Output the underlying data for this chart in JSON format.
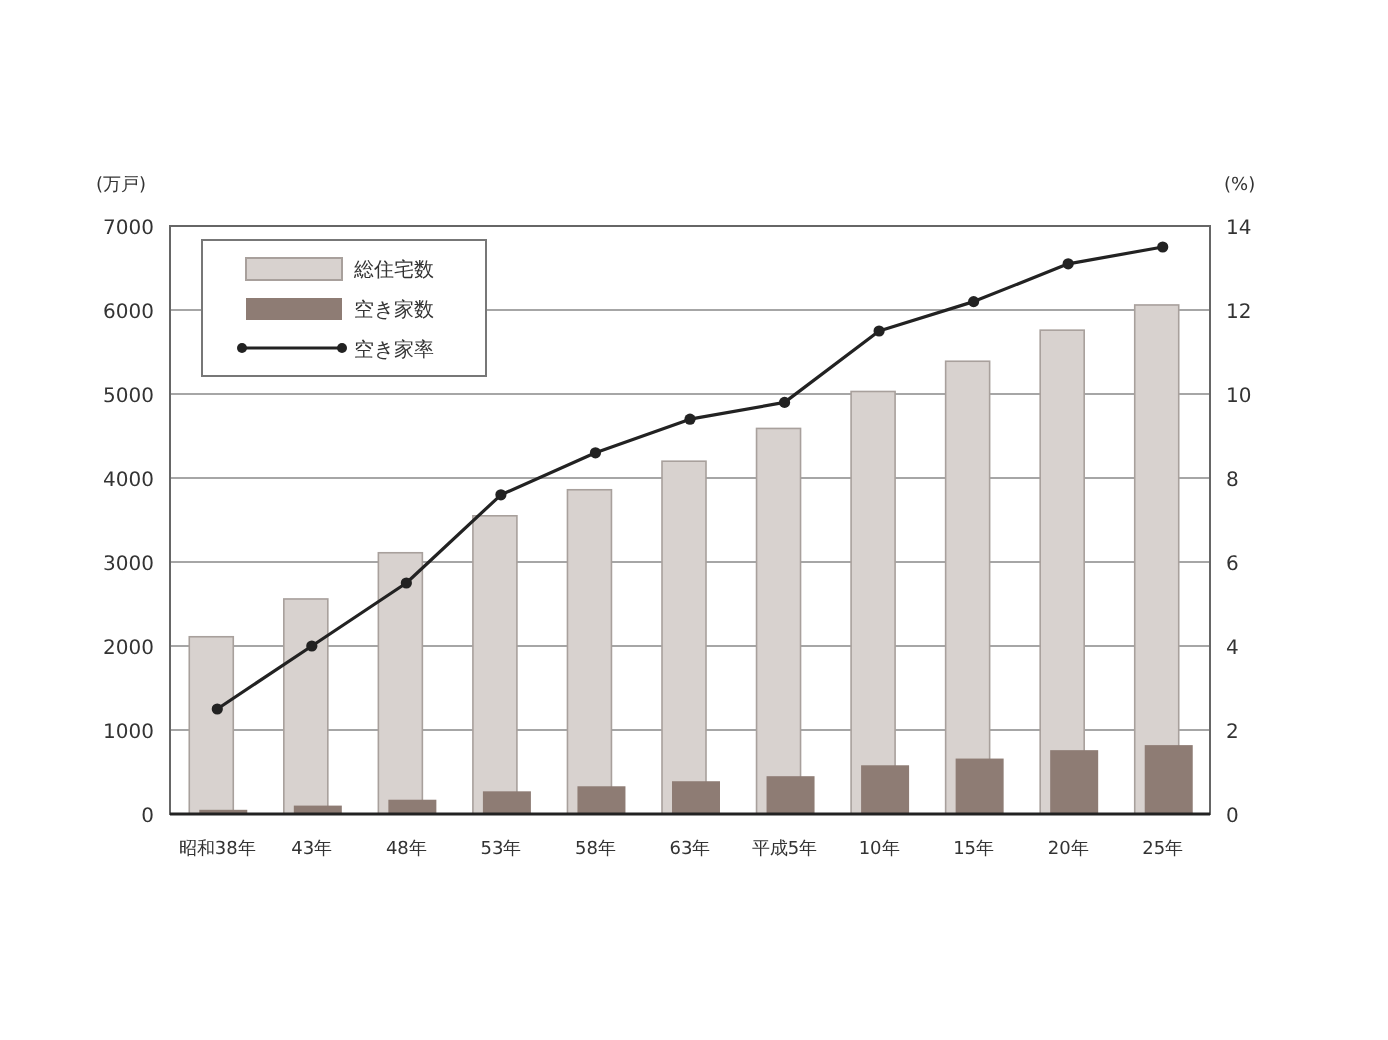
{
  "chart_data": {
    "type": "bar",
    "categories": [
      "昭和38年",
      "43年",
      "48年",
      "53年",
      "58年",
      "63年",
      "平成5年",
      "10年",
      "15年",
      "20年",
      "25年"
    ],
    "ylabel": "(万戸)",
    "y2label": "(%)",
    "series": [
      {
        "name": "総住宅数",
        "color": "#d8d2cf",
        "values": [
          2110,
          2560,
          3110,
          3550,
          3860,
          4200,
          4590,
          5030,
          5390,
          5760,
          6060
        ]
      },
      {
        "name": "空き家数",
        "color": "#8e7c74",
        "values": [
          50,
          100,
          170,
          270,
          330,
          390,
          450,
          580,
          660,
          760,
          820
        ]
      },
      {
        "name": "空き家率",
        "type": "line",
        "axis": "y2",
        "color": "#222222",
        "values": [
          2.5,
          4.0,
          5.5,
          7.6,
          8.6,
          9.4,
          9.8,
          11.5,
          12.2,
          13.1,
          13.5
        ]
      }
    ],
    "ylim": [
      0,
      7000
    ],
    "yticks": [
      0,
      1000,
      2000,
      3000,
      4000,
      5000,
      6000,
      7000
    ],
    "y2lim": [
      0,
      14
    ],
    "y2ticks": [
      0,
      2,
      4,
      6,
      8,
      10,
      12,
      14
    ],
    "grid": "y",
    "legend": "top left",
    "marker": "circle",
    "line_style": "solid"
  }
}
